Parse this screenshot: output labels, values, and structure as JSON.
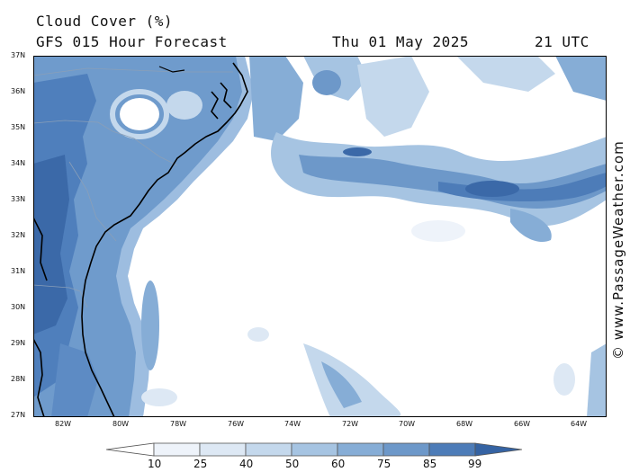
{
  "header": {
    "title_line1": "Cloud Cover (%)",
    "title_line2": "GFS 015 Hour Forecast",
    "date": "Thu 01 May 2025",
    "time": "21 UTC"
  },
  "axes": {
    "lat_labels": [
      "37N",
      "36N",
      "35N",
      "34N",
      "33N",
      "32N",
      "31N",
      "30N",
      "29N",
      "28N",
      "27N"
    ],
    "lon_labels": [
      "82W",
      "80W",
      "78W",
      "76W",
      "74W",
      "72W",
      "70W",
      "68W",
      "66W",
      "64W"
    ]
  },
  "colorbar": {
    "ticks": [
      "10",
      "25",
      "40",
      "50",
      "60",
      "75",
      "85",
      "99"
    ],
    "colors": [
      "#ffffff",
      "#eef3fa",
      "#dde8f4",
      "#c4d8ec",
      "#a6c4e2",
      "#86add6",
      "#6d98c9",
      "#4d7cb8",
      "#3563a3"
    ]
  },
  "credit": "© www.PassageWeather.com",
  "colors": {
    "ocean": "#ffffff",
    "cloud_dark": "#3b69a8",
    "coast": "#000000",
    "border": "#8a9fb8"
  }
}
